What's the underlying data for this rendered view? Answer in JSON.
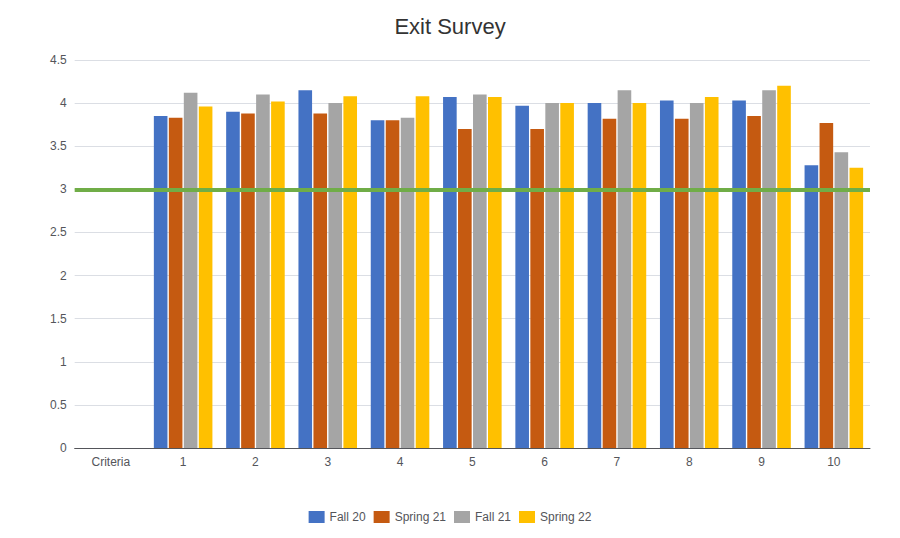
{
  "chart_data": {
    "type": "bar",
    "title": "Exit Survey",
    "categories": [
      "Criteria",
      "1",
      "2",
      "3",
      "4",
      "5",
      "6",
      "7",
      "8",
      "9",
      "10"
    ],
    "series": [
      {
        "name": "Fall 20",
        "color": "#4472C4",
        "values": [
          null,
          3.85,
          3.9,
          4.15,
          3.8,
          4.07,
          3.97,
          4.0,
          4.03,
          4.03,
          3.28
        ]
      },
      {
        "name": "Spring 21",
        "color": "#C55A11",
        "values": [
          null,
          3.83,
          3.88,
          3.88,
          3.8,
          3.7,
          3.7,
          3.82,
          3.82,
          3.85,
          3.77
        ]
      },
      {
        "name": "Fall 21",
        "color": "#A5A5A5",
        "values": [
          null,
          4.12,
          4.1,
          4.0,
          3.83,
          4.1,
          4.0,
          4.15,
          4.0,
          4.15,
          3.43
        ]
      },
      {
        "name": "Spring 22",
        "color": "#FFC000",
        "values": [
          null,
          3.96,
          4.02,
          4.08,
          4.08,
          4.07,
          4.0,
          4.0,
          4.07,
          4.2,
          3.25
        ]
      }
    ],
    "reference_line": {
      "value": 3.0,
      "color": "#70AD47"
    },
    "ylim": [
      0,
      4.5
    ],
    "yticks": [
      0,
      0.5,
      1,
      1.5,
      2,
      2.5,
      3,
      3.5,
      4,
      4.5
    ],
    "grid": true,
    "legend": "bottom"
  }
}
